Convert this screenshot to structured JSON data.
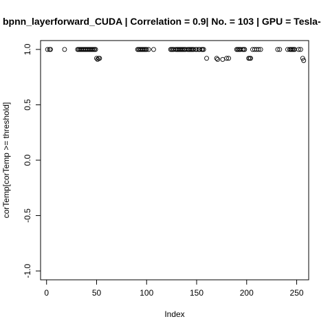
{
  "chart_data": {
    "type": "scatter",
    "title": "bpnn_layerforward_CUDA | Correlation = 0.9| No. = 103 | GPU = Tesla-",
    "xlabel": "Index",
    "ylabel": "corTemp[corTemp >= threshold]",
    "xlim": [
      -6,
      262
    ],
    "ylim": [
      -1.08,
      1.08
    ],
    "xticks": [
      0,
      50,
      100,
      150,
      200,
      250
    ],
    "yticks": [
      -1.0,
      -0.5,
      0.0,
      0.5,
      1.0
    ],
    "xtick_labels": [
      "0",
      "50",
      "100",
      "150",
      "200",
      "250"
    ],
    "ytick_labels": [
      "-1.0",
      "-0.5",
      "0.0",
      "0.5",
      "1.0"
    ],
    "grid": false,
    "legend": "none",
    "marker": "open-circle",
    "x": [
      1,
      3,
      4,
      18,
      31,
      32,
      33,
      34,
      35,
      36,
      37,
      38,
      39,
      40,
      41,
      42,
      43,
      44,
      45,
      46,
      47,
      48,
      49,
      50,
      51,
      52,
      53,
      91,
      92,
      93,
      94,
      95,
      96,
      97,
      98,
      99,
      100,
      102,
      107,
      124,
      125,
      126,
      127,
      129,
      130,
      131,
      132,
      133,
      134,
      135,
      136,
      137,
      138,
      139,
      141,
      142,
      143,
      144,
      145,
      146,
      147,
      149,
      150,
      152,
      153,
      155,
      156,
      157,
      160,
      170,
      171,
      176,
      180,
      182,
      190,
      191,
      192,
      193,
      194,
      196,
      197,
      198,
      202,
      203,
      204,
      206,
      208,
      210,
      212,
      214,
      231,
      233,
      241,
      243,
      244,
      245,
      246,
      247,
      248,
      252,
      254,
      256,
      257
    ],
    "y": [
      1,
      1,
      1,
      1,
      1,
      1,
      1,
      1,
      1,
      1,
      1,
      1,
      1,
      1,
      1,
      1,
      1,
      1,
      1,
      1,
      1,
      1,
      1,
      0.92,
      0.91,
      0.92,
      0.92,
      1,
      1,
      1,
      1,
      1,
      1,
      1,
      1,
      1,
      1,
      1,
      1,
      1,
      1,
      1,
      1,
      1,
      1,
      1,
      1,
      1,
      1,
      1,
      1,
      1,
      1,
      1,
      1,
      1,
      1,
      1,
      1,
      1,
      1,
      1,
      1,
      1,
      1,
      1,
      1,
      1,
      0.92,
      0.92,
      0.91,
      0.91,
      0.92,
      0.92,
      1,
      1,
      1,
      1,
      1,
      1,
      1,
      1,
      0.92,
      0.92,
      0.92,
      1,
      1,
      1,
      1,
      1,
      1,
      1,
      1,
      1,
      1,
      1,
      1,
      1,
      1,
      1,
      1,
      0.92,
      0.9
    ]
  }
}
